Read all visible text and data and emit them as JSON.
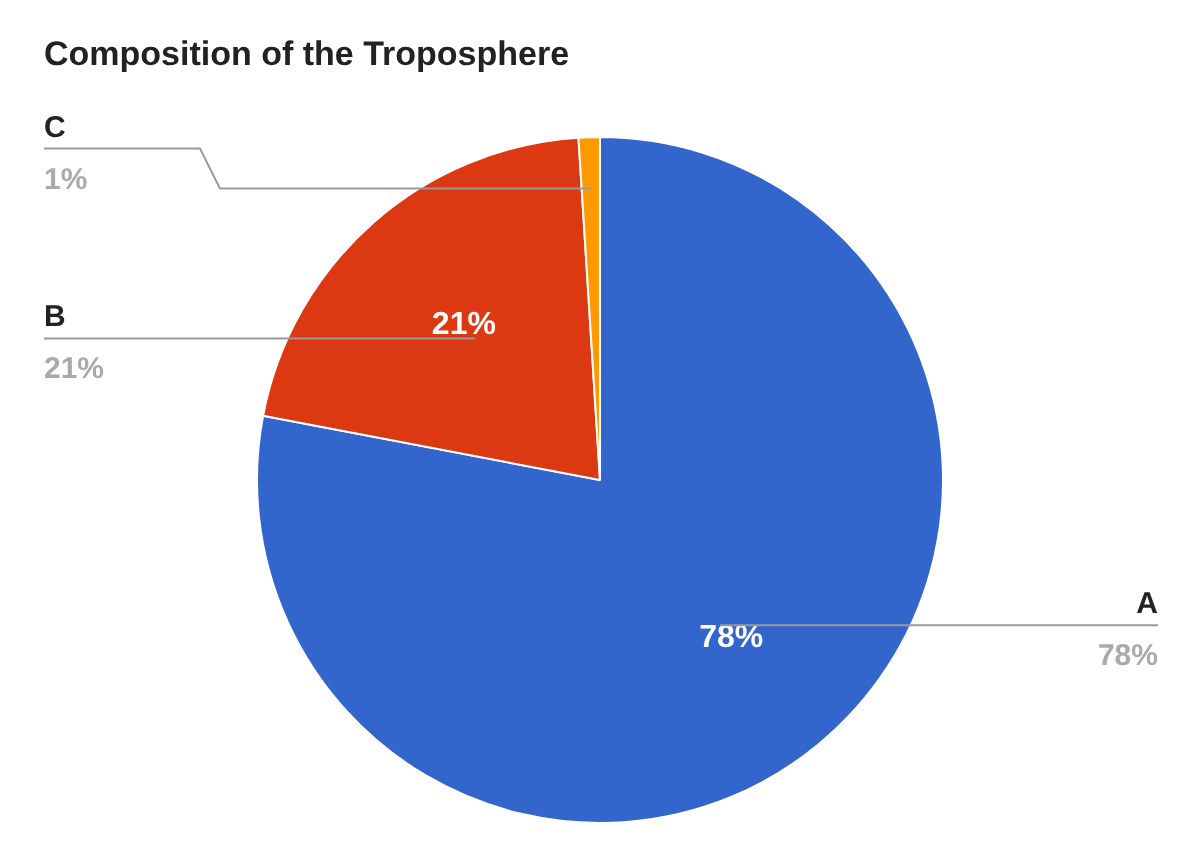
{
  "chart_data": {
    "type": "pie",
    "title": "Composition of the Troposphere",
    "categories": [
      "A",
      "B",
      "C"
    ],
    "values": [
      78,
      21,
      1
    ],
    "colors": [
      "#3366cc",
      "#dc3912",
      "#ff9900"
    ],
    "value_labels": [
      "78%",
      "21%",
      "1%"
    ],
    "legend": false
  }
}
